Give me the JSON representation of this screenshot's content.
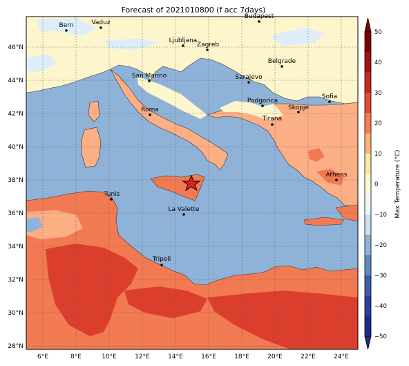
{
  "title": "Forecast of 2021010800 (f acc 7days)",
  "map": {
    "lat_ticks": [
      "28°N",
      "30°N",
      "32°N",
      "34°N",
      "36°N",
      "38°N",
      "40°N",
      "42°N",
      "44°N",
      "46°N"
    ],
    "lon_ticks": [
      "6°E",
      "8°E",
      "10°E",
      "12°E",
      "14°E",
      "16°E",
      "18°E",
      "20°E",
      "22°E",
      "24°E"
    ],
    "grid": true,
    "cities": [
      {
        "name": "Bern"
      },
      {
        "name": "Vaduz"
      },
      {
        "name": "Budapest"
      },
      {
        "name": "Ljubljana"
      },
      {
        "name": "Zagreb"
      },
      {
        "name": "Belgrade"
      },
      {
        "name": "San Marino"
      },
      {
        "name": "Sarajevo"
      },
      {
        "name": "Sofia"
      },
      {
        "name": "Podgorica"
      },
      {
        "name": "Skopje"
      },
      {
        "name": "Roma"
      },
      {
        "name": "Tirana"
      },
      {
        "name": "Athens"
      },
      {
        "name": "Tunis"
      },
      {
        "name": "La Valette"
      },
      {
        "name": "Tripoli"
      }
    ],
    "marker": "star-icon"
  },
  "colorbar": {
    "label": "Max Temperature (°C)",
    "ticks": [
      "50",
      "40",
      "30",
      "20",
      "10",
      "0",
      "−10",
      "−20",
      "−30",
      "−40",
      "−50"
    ],
    "colors": [
      "#1e2a8c",
      "#283ea0",
      "#3b5fad",
      "#5d88c0",
      "#8fb2d8",
      "#c7e3ef",
      "#ecf7fb",
      "#fdf8d2",
      "#fde6a4",
      "#fcb47a",
      "#f47d52",
      "#e34a33",
      "#c82820",
      "#a50f15",
      "#7f0000"
    ]
  },
  "colors": {
    "sea": "#8fb2d8",
    "cold_land": "#fdf5cc",
    "ice": "#ddeefa",
    "mild": "#fcae84",
    "warm": "#f27a52",
    "hot": "#dc3e2e",
    "grid": "#555555"
  }
}
